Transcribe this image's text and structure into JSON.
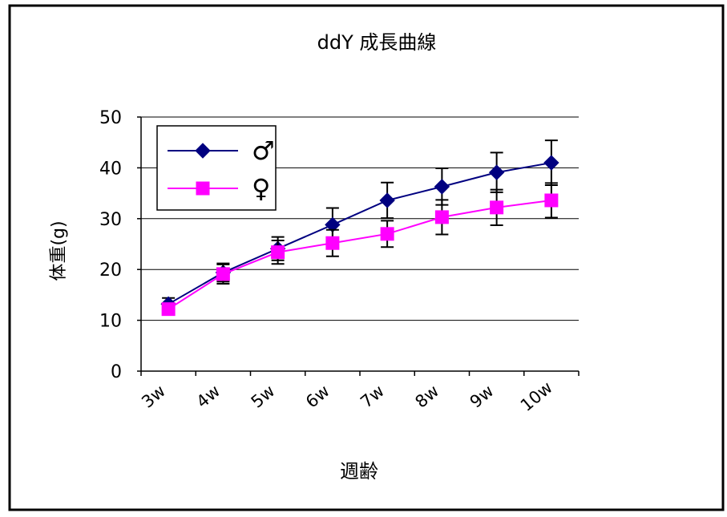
{
  "chart_data": {
    "type": "line",
    "title": "ddY 成長曲線",
    "xlabel": "週齢",
    "ylabel": "体重(g)",
    "categories": [
      "3w",
      "4w",
      "5w",
      "6w",
      "7w",
      "8w",
      "9w",
      "10w"
    ],
    "ylim": [
      0,
      50
    ],
    "yticks": [
      0,
      10,
      20,
      30,
      40,
      50
    ],
    "grid": true,
    "legend_position": "top-left",
    "series": [
      {
        "name": "♂",
        "color": "#000080",
        "marker": "diamond",
        "values": [
          13.2,
          19.4,
          24.1,
          28.8,
          33.6,
          36.3,
          39.1,
          41.0
        ],
        "errors": [
          1.2,
          1.8,
          2.3,
          3.3,
          3.5,
          3.6,
          3.9,
          4.4
        ]
      },
      {
        "name": "♀",
        "color": "#ff00ff",
        "marker": "square",
        "values": [
          12.2,
          19.1,
          23.4,
          25.2,
          27.0,
          30.3,
          32.2,
          33.6
        ],
        "errors": [
          1.0,
          1.9,
          2.3,
          2.6,
          2.6,
          3.4,
          3.5,
          3.4
        ]
      }
    ]
  }
}
